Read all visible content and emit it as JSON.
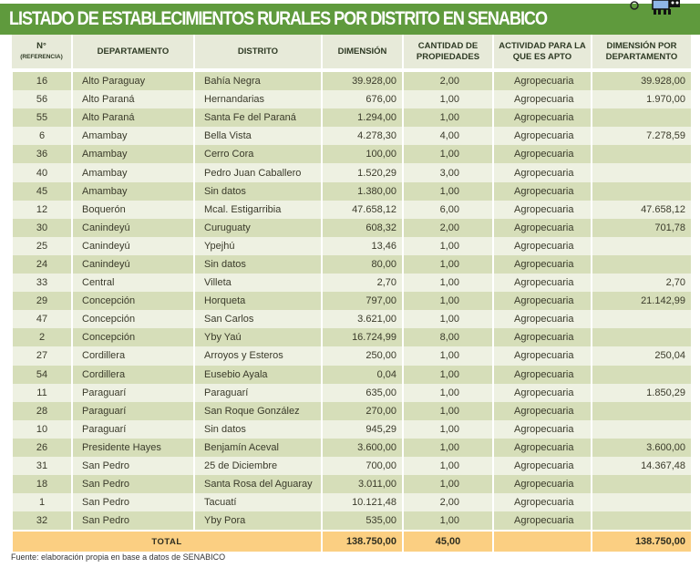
{
  "title": "LISTADO DE ESTABLECIMIENTOS RURALES POR DISTRITO EN SENABICO",
  "headers": {
    "ref": "N°",
    "ref_sub": "(REFERENCIA)",
    "departamento": "DEPARTAMENTO",
    "distrito": "DISTRITO",
    "dimension": "DIMENSIÓN",
    "cantidad": "CANTIDAD DE PROPIEDADES",
    "actividad": "ACTIVIDAD PARA LA QUE ES APTO",
    "dim_depto": "DIMENSIÓN POR DEPARTAMENTO"
  },
  "rows": [
    {
      "ref": "16",
      "departamento": "Alto Paraguay",
      "distrito": "Bahía Negra",
      "dimension": "39.928,00",
      "cantidad": "2,00",
      "actividad": "Agropecuaria",
      "dim_depto": "39.928,00"
    },
    {
      "ref": "56",
      "departamento": "Alto Paraná",
      "distrito": "Hernandarias",
      "dimension": "676,00",
      "cantidad": "1,00",
      "actividad": "Agropecuaria",
      "dim_depto": "1.970,00"
    },
    {
      "ref": "55",
      "departamento": "Alto Paraná",
      "distrito": "Santa Fe del Paraná",
      "dimension": "1.294,00",
      "cantidad": "1,00",
      "actividad": "Agropecuaria",
      "dim_depto": ""
    },
    {
      "ref": "6",
      "departamento": "Amambay",
      "distrito": "Bella Vista",
      "dimension": "4.278,30",
      "cantidad": "4,00",
      "actividad": "Agropecuaria",
      "dim_depto": "7.278,59"
    },
    {
      "ref": "36",
      "departamento": "Amambay",
      "distrito": "Cerro Cora",
      "dimension": "100,00",
      "cantidad": "1,00",
      "actividad": "Agropecuaria",
      "dim_depto": ""
    },
    {
      "ref": "40",
      "departamento": "Amambay",
      "distrito": "Pedro Juan Caballero",
      "dimension": "1.520,29",
      "cantidad": "3,00",
      "actividad": "Agropecuaria",
      "dim_depto": ""
    },
    {
      "ref": "45",
      "departamento": "Amambay",
      "distrito": "Sin datos",
      "dimension": "1.380,00",
      "cantidad": "1,00",
      "actividad": "Agropecuaria",
      "dim_depto": ""
    },
    {
      "ref": "12",
      "departamento": "Boquerón",
      "distrito": "Mcal. Estigarribia",
      "dimension": "47.658,12",
      "cantidad": "6,00",
      "actividad": "Agropecuaria",
      "dim_depto": "47.658,12"
    },
    {
      "ref": "30",
      "departamento": "Canindeyú",
      "distrito": "Curuguaty",
      "dimension": "608,32",
      "cantidad": "2,00",
      "actividad": "Agropecuaria",
      "dim_depto": "701,78"
    },
    {
      "ref": "25",
      "departamento": "Canindeyú",
      "distrito": "Ypejhú",
      "dimension": "13,46",
      "cantidad": "1,00",
      "actividad": "Agropecuaria",
      "dim_depto": ""
    },
    {
      "ref": "24",
      "departamento": "Canindeyú",
      "distrito": "Sin datos",
      "dimension": "80,00",
      "cantidad": "1,00",
      "actividad": "Agropecuaria",
      "dim_depto": ""
    },
    {
      "ref": "33",
      "departamento": "Central",
      "distrito": "Villeta",
      "dimension": "2,70",
      "cantidad": "1,00",
      "actividad": "Agropecuaria",
      "dim_depto": "2,70"
    },
    {
      "ref": "29",
      "departamento": "Concepción",
      "distrito": "Horqueta",
      "dimension": "797,00",
      "cantidad": "1,00",
      "actividad": "Agropecuaria",
      "dim_depto": "21.142,99"
    },
    {
      "ref": "47",
      "departamento": "Concepción",
      "distrito": "San Carlos",
      "dimension": "3.621,00",
      "cantidad": "1,00",
      "actividad": "Agropecuaria",
      "dim_depto": ""
    },
    {
      "ref": "2",
      "departamento": "Concepción",
      "distrito": "Yby Yaú",
      "dimension": "16.724,99",
      "cantidad": "8,00",
      "actividad": "Agropecuaria",
      "dim_depto": ""
    },
    {
      "ref": "27",
      "departamento": "Cordillera",
      "distrito": "Arroyos y Esteros",
      "dimension": "250,00",
      "cantidad": "1,00",
      "actividad": "Agropecuaria",
      "dim_depto": "250,04"
    },
    {
      "ref": "54",
      "departamento": "Cordillera",
      "distrito": "Eusebio Ayala",
      "dimension": "0,04",
      "cantidad": "1,00",
      "actividad": "Agropecuaria",
      "dim_depto": ""
    },
    {
      "ref": "11",
      "departamento": "Paraguarí",
      "distrito": "Paraguarí",
      "dimension": "635,00",
      "cantidad": "1,00",
      "actividad": "Agropecuaria",
      "dim_depto": "1.850,29"
    },
    {
      "ref": "28",
      "departamento": "Paraguarí",
      "distrito": "San Roque González",
      "dimension": "270,00",
      "cantidad": "1,00",
      "actividad": "Agropecuaria",
      "dim_depto": ""
    },
    {
      "ref": "10",
      "departamento": "Paraguarí",
      "distrito": "Sin datos",
      "dimension": "945,29",
      "cantidad": "1,00",
      "actividad": "Agropecuaria",
      "dim_depto": ""
    },
    {
      "ref": "26",
      "departamento": "Presidente Hayes",
      "distrito": "Benjamín Aceval",
      "dimension": "3.600,00",
      "cantidad": "1,00",
      "actividad": "Agropecuaria",
      "dim_depto": "3.600,00"
    },
    {
      "ref": "31",
      "departamento": "San Pedro",
      "distrito": "25 de Diciembre",
      "dimension": "700,00",
      "cantidad": "1,00",
      "actividad": "Agropecuaria",
      "dim_depto": "14.367,48"
    },
    {
      "ref": "18",
      "departamento": "San Pedro",
      "distrito": "Santa Rosa del Aguaray",
      "dimension": "3.011,00",
      "cantidad": "1,00",
      "actividad": "Agropecuaria",
      "dim_depto": ""
    },
    {
      "ref": "1",
      "departamento": "San Pedro",
      "distrito": "Tacuatí",
      "dimension": "10.121,48",
      "cantidad": "2,00",
      "actividad": "Agropecuaria",
      "dim_depto": ""
    },
    {
      "ref": "32",
      "departamento": "San Pedro",
      "distrito": "Yby Pora",
      "dimension": "535,00",
      "cantidad": "1,00",
      "actividad": "Agropecuaria",
      "dim_depto": ""
    }
  ],
  "total": {
    "label": "TOTAL",
    "dimension": "138.750,00",
    "cantidad": "45,00",
    "dim_depto": "138.750,00"
  },
  "footer": "Fuente: elaboración propia en base a datos de SENABICO",
  "colors": {
    "title_bar": "#5f9a3d",
    "row_odd": "#d6deb9",
    "row_even": "#eef1e2",
    "header": "#e7ead9",
    "total": "#fbcf82"
  }
}
